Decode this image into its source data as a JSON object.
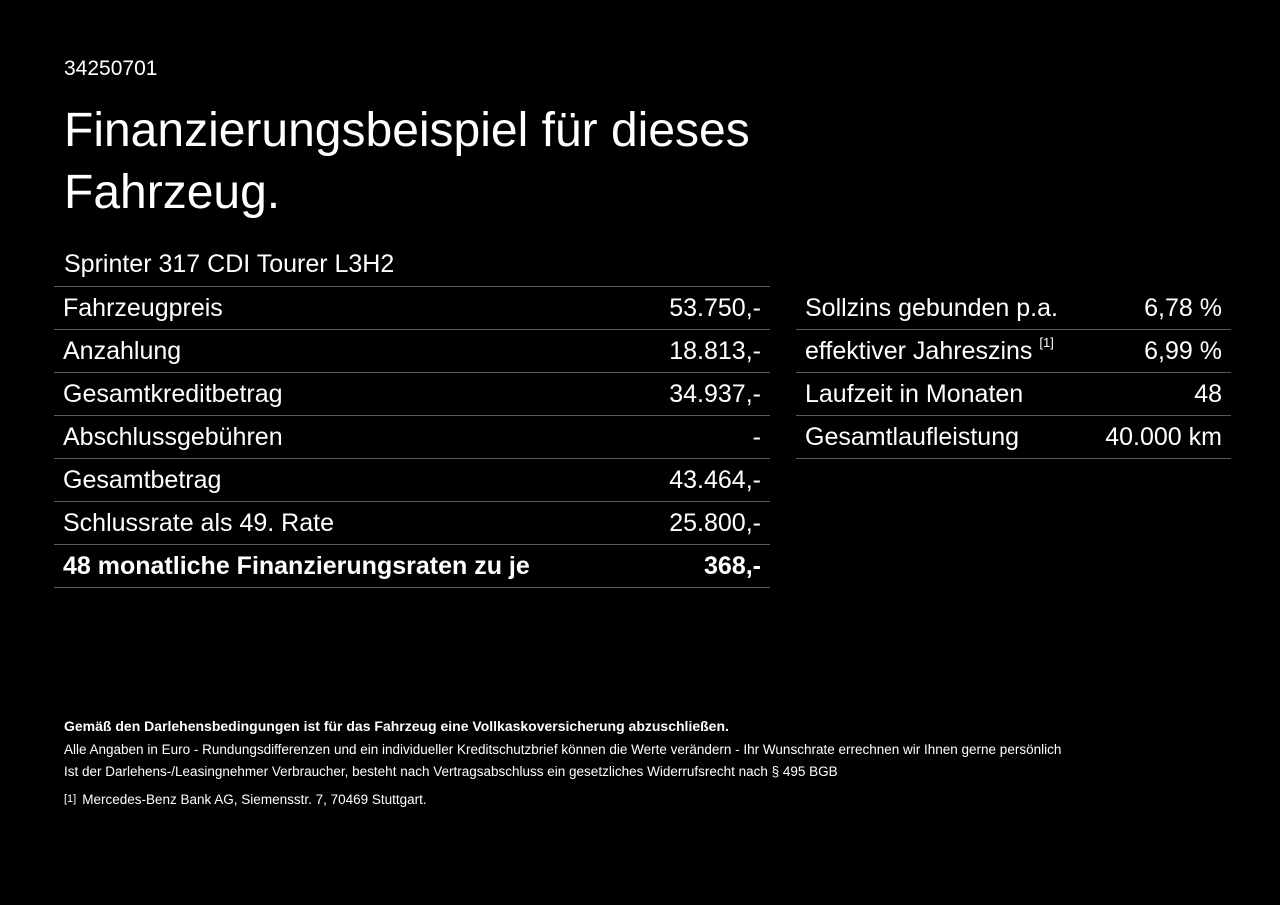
{
  "doc_id": "34250701",
  "title": "Finanzierungsbeispiel für dieses Fahrzeug.",
  "model": "Sprinter 317 CDI Tourer L3H2",
  "left_table": [
    {
      "label": "Fahrzeugpreis",
      "value": "53.750,-"
    },
    {
      "label": "Anzahlung",
      "value": "18.813,-"
    },
    {
      "label": "Gesamtkreditbetrag",
      "value": "34.937,-"
    },
    {
      "label": "Abschlussgebühren",
      "value": "-"
    },
    {
      "label": "Gesamtbetrag",
      "value": "43.464,-"
    },
    {
      "label": "Schlussrate als 49. Rate",
      "value": "25.800,-"
    },
    {
      "label": "48 monatliche Finanzierungsraten zu je",
      "value": "368,-"
    }
  ],
  "right_table": [
    {
      "label": "Sollzins gebunden p.a.",
      "value": "6,78 %"
    },
    {
      "label": "effektiver Jahreszins",
      "sup": "[1]",
      "value": "6,99 %"
    },
    {
      "label": "Laufzeit in Monaten",
      "value": "48"
    },
    {
      "label": "Gesamtlaufleistung",
      "value": "40.000 km"
    }
  ],
  "footer": {
    "bold_note": "Gemäß den Darlehensbedingungen ist für das Fahrzeug eine Vollkaskoversicherung abzuschließen.",
    "line1": "Alle Angaben in Euro - Rundungsdifferenzen und ein individueller Kreditschutzbrief können die Werte verändern - Ihr Wunschrate errechnen wir Ihnen gerne persönlich",
    "line2": "Ist der Darlehens-/Leasingnehmer Verbraucher, besteht nach Vertragsabschluss ein gesetzliches Widerrufsrecht nach § 495 BGB",
    "footnote_mark": "[1]",
    "footnote": "Mercedes-Benz Bank AG, Siemensstr. 7, 70469 Stuttgart."
  }
}
